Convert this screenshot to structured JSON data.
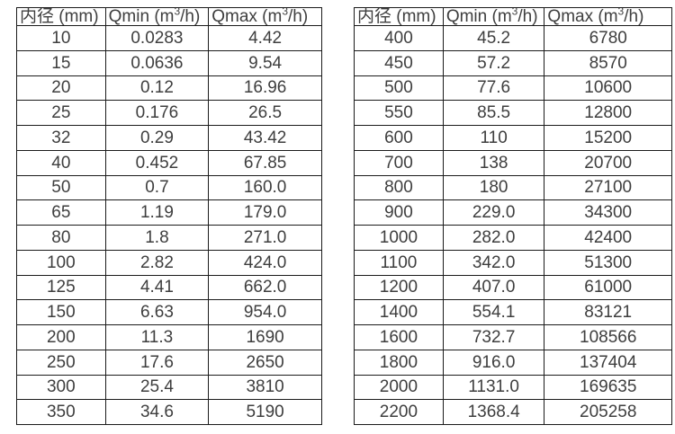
{
  "page": {
    "background_color": "#ffffff",
    "text_color": "#3e3e3e",
    "border_color": "#1b1b1b"
  },
  "tables": [
    {
      "name": "flow-table-small-diameters",
      "headers": [
        "内径 (mm)",
        "Qmin (m³/h)",
        "Qmax (m³/h)"
      ],
      "rows": [
        [
          "10",
          "0.0283",
          "4.42"
        ],
        [
          "15",
          "0.0636",
          "9.54"
        ],
        [
          "20",
          "0.12",
          "16.96"
        ],
        [
          "25",
          "0.176",
          "26.5"
        ],
        [
          "32",
          "0.29",
          "43.42"
        ],
        [
          "40",
          "0.452",
          "67.85"
        ],
        [
          "50",
          "0.7",
          "160.0"
        ],
        [
          "65",
          "1.19",
          "179.0"
        ],
        [
          "80",
          "1.8",
          "271.0"
        ],
        [
          "100",
          "2.82",
          "424.0"
        ],
        [
          "125",
          "4.41",
          "662.0"
        ],
        [
          "150",
          "6.63",
          "954.0"
        ],
        [
          "200",
          "11.3",
          "1690"
        ],
        [
          "250",
          "17.6",
          "2650"
        ],
        [
          "300",
          "25.4",
          "3810"
        ],
        [
          "350",
          "34.6",
          "5190"
        ]
      ]
    },
    {
      "name": "flow-table-large-diameters",
      "headers": [
        "内径 (mm)",
        "Qmin (m³/h)",
        "Qmax (m³/h)"
      ],
      "rows": [
        [
          "400",
          "45.2",
          "6780"
        ],
        [
          "450",
          "57.2",
          "8570"
        ],
        [
          "500",
          "77.6",
          "10600"
        ],
        [
          "550",
          "85.5",
          "12800"
        ],
        [
          "600",
          "110",
          "15200"
        ],
        [
          "700",
          "138",
          "20700"
        ],
        [
          "800",
          "180",
          "27100"
        ],
        [
          "900",
          "229.0",
          "34300"
        ],
        [
          "1000",
          "282.0",
          "42400"
        ],
        [
          "1100",
          "342.0",
          "51300"
        ],
        [
          "1200",
          "407.0",
          "61000"
        ],
        [
          "1400",
          "554.1",
          "83121"
        ],
        [
          "1600",
          "732.7",
          "108566"
        ],
        [
          "1800",
          "916.0",
          "137404"
        ],
        [
          "2000",
          "1131.0",
          "169635"
        ],
        [
          "2200",
          "1368.4",
          "205258"
        ]
      ]
    }
  ]
}
